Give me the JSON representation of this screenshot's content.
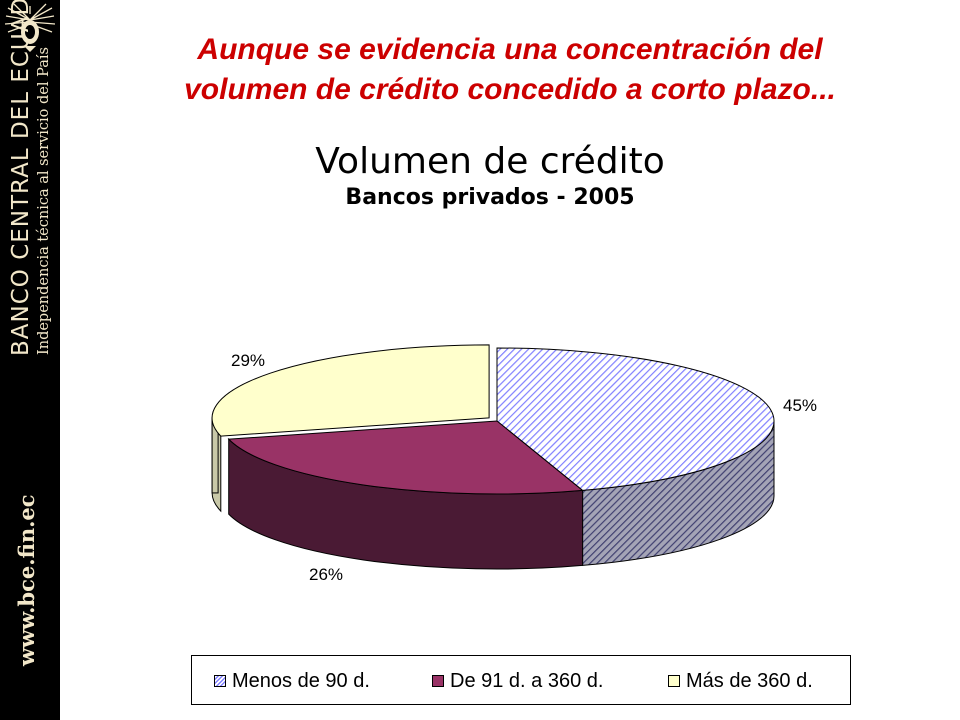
{
  "sidebar": {
    "bank_name": "BANCO CENTRAL DEL ECUADOR",
    "tagline": "Independencia técnica al servicio del País",
    "website": "www.bce.fin.ec",
    "logo_icon": "condor-crest-icon"
  },
  "headline": {
    "line1": "Aunque se evidencia una concentración del",
    "line2": "volumen de crédito concedido a corto plazo..."
  },
  "colors": {
    "headline": "#cc0000",
    "slice_short": "#8080ff",
    "slice_mid": "#993366",
    "slice_long": "#ffffcc"
  },
  "chart_data": {
    "type": "pie",
    "title": "Volumen de crédito",
    "subtitle": "Bancos privados - 2005",
    "categories": [
      "Menos de 90 d.",
      "De 91 d. a 360 d.",
      "Más de 360 d."
    ],
    "values": [
      45,
      26,
      29
    ],
    "unit": "%",
    "data_labels": [
      "45%",
      "26%",
      "29%"
    ],
    "style": "3d-exploded-hatched",
    "legend_position": "bottom"
  }
}
